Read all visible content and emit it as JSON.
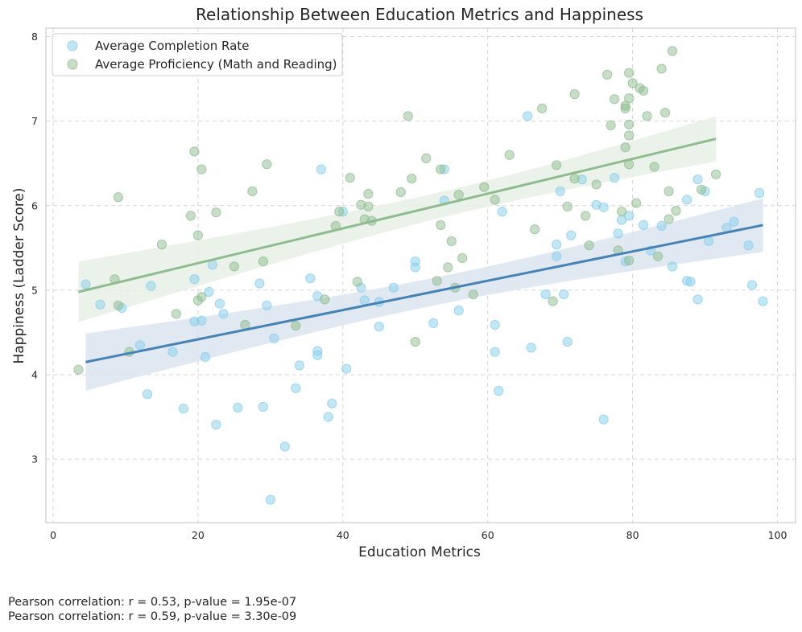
{
  "chart_data": {
    "type": "scatter",
    "title": "Relationship Between Education Metrics and Happiness",
    "xlabel": "Education Metrics",
    "ylabel": "Happiness (Ladder Score)",
    "xlim": [
      -1,
      102.5
    ],
    "ylim": [
      2.25,
      8.1
    ],
    "xticks": [
      0,
      20,
      40,
      60,
      80,
      100
    ],
    "yticks": [
      3,
      4,
      5,
      6,
      7,
      8
    ],
    "grid": true,
    "legend_position": "top-left",
    "series": [
      {
        "name": "Average Completion Rate",
        "color": "#87ceeb",
        "line_color": "#4682b4",
        "band_color": "#dae4f0",
        "points": [
          [
            4.5,
            5.07
          ],
          [
            6.5,
            4.83
          ],
          [
            9.5,
            4.79
          ],
          [
            12,
            4.35
          ],
          [
            13,
            3.77
          ],
          [
            13.5,
            5.05
          ],
          [
            16.5,
            4.27
          ],
          [
            18,
            3.6
          ],
          [
            19.5,
            5.13
          ],
          [
            19.5,
            4.63
          ],
          [
            20.5,
            4.64
          ],
          [
            21,
            4.21
          ],
          [
            21.5,
            4.98
          ],
          [
            22,
            5.3
          ],
          [
            22.5,
            3.41
          ],
          [
            23,
            4.84
          ],
          [
            23.5,
            4.72
          ],
          [
            25.5,
            3.61
          ],
          [
            28.5,
            5.08
          ],
          [
            29,
            3.62
          ],
          [
            29.5,
            4.82
          ],
          [
            30,
            2.52
          ],
          [
            30.5,
            4.43
          ],
          [
            32,
            3.15
          ],
          [
            33.5,
            3.84
          ],
          [
            34,
            4.11
          ],
          [
            35.5,
            5.14
          ],
          [
            36.5,
            4.93
          ],
          [
            36.5,
            4.23
          ],
          [
            36.5,
            4.28
          ],
          [
            37,
            6.43
          ],
          [
            38,
            3.5
          ],
          [
            38.5,
            3.66
          ],
          [
            40,
            5.93
          ],
          [
            40.5,
            4.07
          ],
          [
            42.5,
            5.03
          ],
          [
            43,
            4.88
          ],
          [
            45,
            4.86
          ],
          [
            45,
            4.57
          ],
          [
            47,
            5.03
          ],
          [
            50,
            5.34
          ],
          [
            50,
            5.27
          ],
          [
            52.5,
            4.61
          ],
          [
            54,
            6.43
          ],
          [
            54,
            6.06
          ],
          [
            56,
            4.76
          ],
          [
            61,
            4.59
          ],
          [
            61,
            4.27
          ],
          [
            61.5,
            3.81
          ],
          [
            62,
            5.93
          ],
          [
            65.5,
            7.06
          ],
          [
            66,
            4.32
          ],
          [
            68,
            4.95
          ],
          [
            69.5,
            5.54
          ],
          [
            69.5,
            5.4
          ],
          [
            70,
            6.17
          ],
          [
            70.5,
            4.95
          ],
          [
            71,
            4.39
          ],
          [
            71.5,
            5.65
          ],
          [
            73,
            6.31
          ],
          [
            75,
            6.01
          ],
          [
            76,
            5.98
          ],
          [
            76,
            3.47
          ],
          [
            77.5,
            6.33
          ],
          [
            78,
            5.67
          ],
          [
            78.5,
            5.83
          ],
          [
            79,
            5.34
          ],
          [
            79.5,
            5.88
          ],
          [
            81.5,
            5.77
          ],
          [
            82.5,
            5.47
          ],
          [
            84,
            5.76
          ],
          [
            85.5,
            5.28
          ],
          [
            87.5,
            6.07
          ],
          [
            87.5,
            5.11
          ],
          [
            88,
            5.1
          ],
          [
            89,
            6.31
          ],
          [
            89,
            4.89
          ],
          [
            90,
            6.17
          ],
          [
            90.5,
            5.58
          ],
          [
            93,
            5.74
          ],
          [
            94,
            5.81
          ],
          [
            96,
            5.53
          ],
          [
            96.5,
            5.06
          ],
          [
            97.5,
            6.15
          ],
          [
            98,
            4.87
          ]
        ],
        "fit": {
          "x": [
            4.5,
            98
          ],
          "y": [
            4.15,
            5.77
          ]
        }
      },
      {
        "name": "Average Proficiency (Math and Reading)",
        "color": "#8fbc8f",
        "line_color": "#8fbc8f",
        "band_color": "#e6f0e6",
        "points": [
          [
            3.5,
            4.06
          ],
          [
            8.5,
            5.13
          ],
          [
            9,
            6.1
          ],
          [
            9,
            4.82
          ],
          [
            10.5,
            4.27
          ],
          [
            15,
            5.54
          ],
          [
            17,
            4.72
          ],
          [
            19,
            5.88
          ],
          [
            19.5,
            6.64
          ],
          [
            20,
            5.65
          ],
          [
            20,
            4.88
          ],
          [
            20.5,
            6.43
          ],
          [
            20.5,
            4.92
          ],
          [
            22.5,
            5.92
          ],
          [
            25,
            5.28
          ],
          [
            26.5,
            4.59
          ],
          [
            27.5,
            6.17
          ],
          [
            29,
            5.34
          ],
          [
            29.5,
            6.49
          ],
          [
            33.5,
            4.58
          ],
          [
            37.5,
            4.89
          ],
          [
            39,
            5.76
          ],
          [
            39.5,
            5.93
          ],
          [
            41,
            6.33
          ],
          [
            42,
            5.1
          ],
          [
            42.5,
            6.01
          ],
          [
            43,
            5.84
          ],
          [
            43.5,
            5.99
          ],
          [
            43.5,
            6.14
          ],
          [
            44,
            5.82
          ],
          [
            48,
            6.16
          ],
          [
            49,
            7.06
          ],
          [
            49.5,
            6.32
          ],
          [
            50,
            4.39
          ],
          [
            51.5,
            6.56
          ],
          [
            53,
            5.11
          ],
          [
            53.5,
            5.77
          ],
          [
            53.5,
            6.43
          ],
          [
            54.5,
            5.27
          ],
          [
            55,
            5.58
          ],
          [
            55.5,
            5.03
          ],
          [
            56,
            6.13
          ],
          [
            56.5,
            5.38
          ],
          [
            58,
            4.95
          ],
          [
            59.5,
            6.22
          ],
          [
            61,
            6.07
          ],
          [
            63,
            6.6
          ],
          [
            66.5,
            5.72
          ],
          [
            67.5,
            7.15
          ],
          [
            69,
            4.87
          ],
          [
            69.5,
            6.48
          ],
          [
            71,
            5.99
          ],
          [
            72,
            7.32
          ],
          [
            72,
            6.32
          ],
          [
            73.5,
            5.88
          ],
          [
            74,
            5.53
          ],
          [
            75,
            6.25
          ],
          [
            76.5,
            7.55
          ],
          [
            77,
            6.95
          ],
          [
            77.5,
            7.26
          ],
          [
            78,
            5.47
          ],
          [
            78.5,
            5.93
          ],
          [
            79,
            7.18
          ],
          [
            79,
            7.15
          ],
          [
            79,
            6.69
          ],
          [
            79.5,
            7.57
          ],
          [
            79.5,
            7.27
          ],
          [
            79.5,
            6.96
          ],
          [
            79.5,
            6.83
          ],
          [
            79.5,
            6.49
          ],
          [
            79.5,
            5.35
          ],
          [
            80,
            7.45
          ],
          [
            80.5,
            6.03
          ],
          [
            81,
            7.39
          ],
          [
            81.5,
            7.36
          ],
          [
            82,
            7.06
          ],
          [
            83,
            6.46
          ],
          [
            83.5,
            5.4
          ],
          [
            84,
            7.62
          ],
          [
            84.5,
            7.1
          ],
          [
            85,
            6.17
          ],
          [
            85,
            5.84
          ],
          [
            85.5,
            7.83
          ],
          [
            86,
            5.94
          ],
          [
            89.5,
            6.19
          ],
          [
            91.5,
            6.37
          ]
        ],
        "fit": {
          "x": [
            3.5,
            91.5
          ],
          "y": [
            4.98,
            6.79
          ]
        }
      }
    ],
    "annotations": [
      "Pearson correlation: r = 0.53, p-value = 1.95e-07",
      "Pearson correlation: r = 0.59, p-value = 3.30e-09"
    ]
  }
}
